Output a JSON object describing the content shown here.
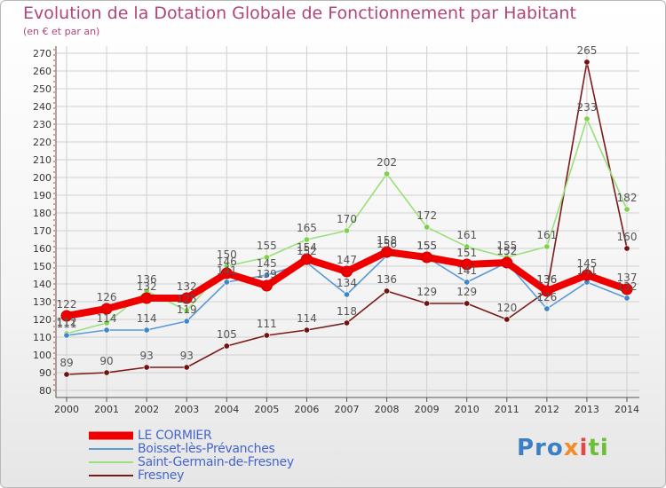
{
  "title": "Evolution de la Dotation Globale de Fonctionnement par Habitant",
  "subtitle": "(en € et par an)",
  "logo": {
    "p1": "Pro",
    "p2": "x",
    "p3": "i",
    "p4": "ti"
  },
  "colors": {
    "title": "#b0457a",
    "grid": "#d0d0d0",
    "axis": "#555555",
    "legend_text": "#4466cc"
  },
  "chart_data": {
    "type": "line",
    "title": "Evolution de la Dotation Globale de Fonctionnement par Habitant",
    "ylabel": "(en € et par an)",
    "xlabel": "",
    "ylim": [
      80,
      270
    ],
    "ytick_step": 10,
    "grid": true,
    "categories": [
      "2000",
      "2001",
      "2002",
      "2003",
      "2004",
      "2005",
      "2006",
      "2007",
      "2008",
      "2009",
      "2010",
      "2011",
      "2012",
      "2013",
      "2014"
    ],
    "series": [
      {
        "name": "Fresney",
        "color": "#7a1a1a",
        "marker": "#6e1212",
        "values": [
          89,
          90,
          93,
          93,
          105,
          111,
          114,
          118,
          136,
          129,
          129,
          120,
          136,
          265,
          160
        ],
        "labels": [
          "89",
          "90",
          "93",
          "93",
          "105",
          "111",
          "114",
          "118",
          "136",
          "129",
          "129",
          "120",
          "136",
          "265",
          "160"
        ]
      },
      {
        "name": "Saint-Germain-de-Fresney",
        "color": "#99e07a",
        "marker": "#7fd04a",
        "values": [
          112,
          118,
          136,
          125,
          150,
          155,
          165,
          170,
          202,
          172,
          161,
          155,
          161,
          233,
          182
        ],
        "labels": [
          "112",
          "",
          "136",
          "125",
          "150",
          "155",
          "165",
          "170",
          "202",
          "172",
          "161",
          "155",
          "161",
          "233",
          "182"
        ]
      },
      {
        "name": "Boisset-lès-Prévanches",
        "color": "#5a9bd5",
        "marker": "#3f86c8",
        "values": [
          111,
          114,
          114,
          119,
          141,
          145,
          152,
          134,
          156,
          155,
          141,
          152,
          126,
          141,
          132
        ],
        "labels": [
          "111",
          "114",
          "114",
          "119",
          "141",
          "145",
          "152",
          "134",
          "156",
          "155",
          "141",
          "152",
          "126",
          "141",
          "132"
        ]
      },
      {
        "name": "LE CORMIER",
        "color": "#ee0000",
        "marker": "#ee0000",
        "values": [
          122,
          126,
          132,
          132,
          146,
          139,
          154,
          147,
          158,
          155,
          151,
          152,
          136,
          145,
          137
        ],
        "labels": [
          "122",
          "126",
          "132",
          "132",
          "146",
          "139",
          "154",
          "147",
          "158",
          "155",
          "151",
          "152",
          "136",
          "145",
          "137"
        ]
      }
    ]
  },
  "legend": [
    {
      "label": "LE CORMIER",
      "color": "#ee0000",
      "thickness": 8
    },
    {
      "label": "Boisset-lès-Prévanches",
      "color": "#5a9bd5",
      "thickness": 2
    },
    {
      "label": "Saint-Germain-de-Fresney",
      "color": "#99e07a",
      "thickness": 2
    },
    {
      "label": "Fresney",
      "color": "#7a1a1a",
      "thickness": 2
    }
  ]
}
